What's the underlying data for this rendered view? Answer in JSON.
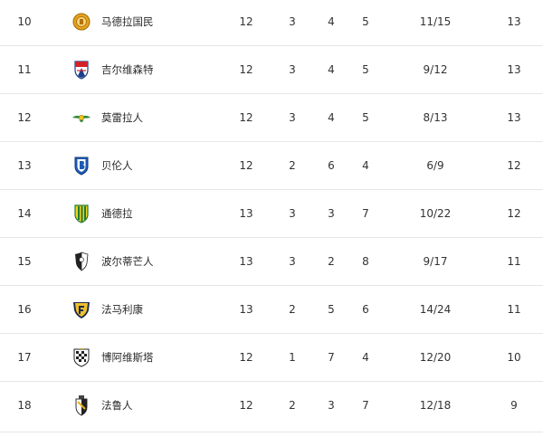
{
  "standings": {
    "rows": [
      {
        "rank": "10",
        "team": "马德拉国民",
        "played": "12",
        "win": "3",
        "draw": "4",
        "loss": "5",
        "goals": "11/15",
        "points": "13",
        "logo_icon": "nacional-crest-icon"
      },
      {
        "rank": "11",
        "team": "吉尔维森特",
        "played": "12",
        "win": "3",
        "draw": "4",
        "loss": "5",
        "goals": "9/12",
        "points": "13",
        "logo_icon": "gil-vicente-crest-icon"
      },
      {
        "rank": "12",
        "team": "莫雷拉人",
        "played": "12",
        "win": "3",
        "draw": "4",
        "loss": "5",
        "goals": "8/13",
        "points": "13",
        "logo_icon": "moreirense-crest-icon"
      },
      {
        "rank": "13",
        "team": "贝伦人",
        "played": "12",
        "win": "2",
        "draw": "6",
        "loss": "4",
        "goals": "6/9",
        "points": "12",
        "logo_icon": "belenenses-crest-icon"
      },
      {
        "rank": "14",
        "team": "通德拉",
        "played": "13",
        "win": "3",
        "draw": "3",
        "loss": "7",
        "goals": "10/22",
        "points": "12",
        "logo_icon": "tondela-crest-icon"
      },
      {
        "rank": "15",
        "team": "波尔蒂芒人",
        "played": "13",
        "win": "3",
        "draw": "2",
        "loss": "8",
        "goals": "9/17",
        "points": "11",
        "logo_icon": "portimonense-crest-icon"
      },
      {
        "rank": "16",
        "team": "法马利康",
        "played": "13",
        "win": "2",
        "draw": "5",
        "loss": "6",
        "goals": "14/24",
        "points": "11",
        "logo_icon": "famalicao-crest-icon"
      },
      {
        "rank": "17",
        "team": "博阿维斯塔",
        "played": "12",
        "win": "1",
        "draw": "7",
        "loss": "4",
        "goals": "12/20",
        "points": "10",
        "logo_icon": "boavista-crest-icon"
      },
      {
        "rank": "18",
        "team": "法鲁人",
        "played": "12",
        "win": "2",
        "draw": "3",
        "loss": "7",
        "goals": "12/18",
        "points": "9",
        "logo_icon": "farense-crest-icon"
      }
    ]
  },
  "colors": {
    "text": "#333333",
    "divider": "#e4e6ea"
  }
}
